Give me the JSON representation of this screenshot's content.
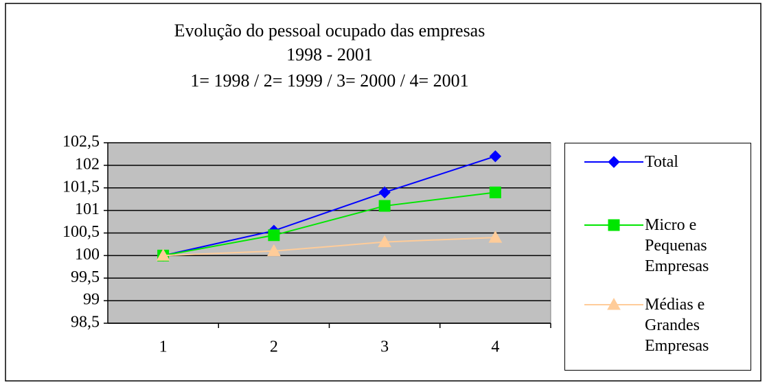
{
  "chart_data": {
    "type": "line",
    "title": [
      "Evolução do pessoal ocupado das empresas",
      "1998 - 2001",
      "1= 1998 / 2= 1999 / 3= 2000 / 4= 2001"
    ],
    "categories": [
      "1",
      "2",
      "3",
      "4"
    ],
    "series": [
      {
        "name": "Total",
        "color": "#0000ff",
        "marker": "diamond",
        "values": [
          100,
          100.55,
          101.4,
          102.2
        ]
      },
      {
        "name": "Micro e Pequenas Empresas",
        "color": "#00e600",
        "marker": "square",
        "values": [
          100,
          100.45,
          101.1,
          101.4
        ]
      },
      {
        "name": "Médias e Grandes Empresas",
        "color": "#ffcc99",
        "marker": "triangle",
        "values": [
          100,
          100.1,
          100.3,
          100.4
        ]
      }
    ],
    "ylim": [
      98.5,
      102.5
    ],
    "yticks": [
      {
        "value": 98.5,
        "label": "98,5"
      },
      99,
      {
        "value": 99.5,
        "label": "99,5"
      },
      100,
      {
        "value": 100.5,
        "label": "100,5"
      },
      101,
      {
        "value": 101.5,
        "label": "101,5"
      },
      102,
      {
        "value": 102.5,
        "label": "102,5"
      }
    ],
    "grid": true,
    "legend": "right"
  }
}
